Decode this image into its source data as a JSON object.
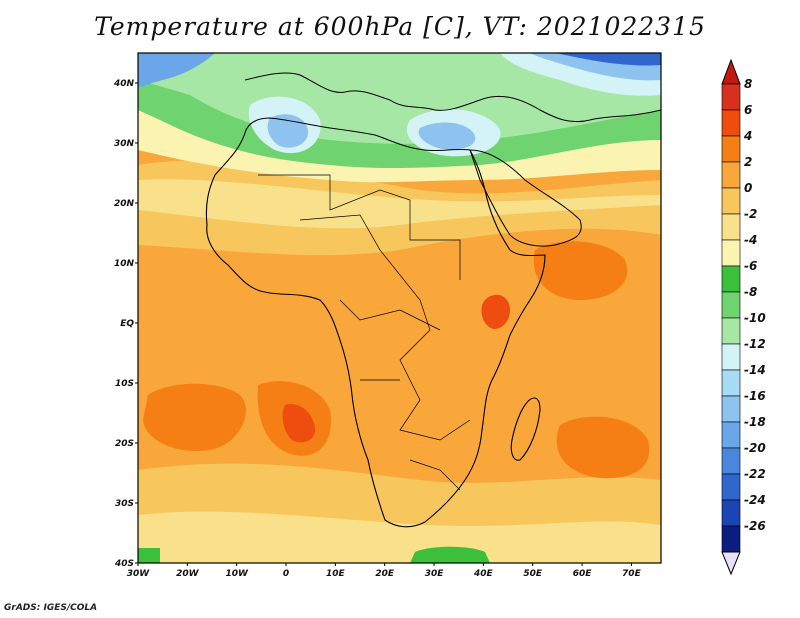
{
  "title": "Temperature at 600hPa [C], VT: 2021022315",
  "credit": "GrADS: IGES/COLA",
  "map": {
    "lat_labels": [
      "40N",
      "30N",
      "20N",
      "10N",
      "EQ",
      "10S",
      "20S",
      "30S",
      "40S"
    ],
    "lon_labels": [
      "30W",
      "20W",
      "10W",
      "0",
      "10E",
      "20E",
      "30E",
      "40E",
      "50E",
      "60E",
      "70E"
    ],
    "lat_range": [
      -40,
      45
    ],
    "lon_range": [
      -30,
      76
    ]
  },
  "colorbar": {
    "labels": [
      "8",
      "6",
      "4",
      "2",
      "0",
      "-2",
      "-4",
      "-6",
      "-8",
      "-10",
      "-12",
      "-14",
      "-16",
      "-18",
      "-20",
      "-22",
      "-24",
      "-26"
    ],
    "colors": [
      "#d7301f",
      "#ef4c10",
      "#f57f14",
      "#f9a73a",
      "#f7c65c",
      "#f9e08a",
      "#fbf3b0",
      "#3cc03c",
      "#6fd36f",
      "#a6e7a6",
      "#d3f3f6",
      "#a8dcf5",
      "#8ec3f0",
      "#6aa6e8",
      "#4a86dc",
      "#2f67cf",
      "#1b45b5",
      "#0b1e80"
    ],
    "top_tip_color": "#c21a0c",
    "bottom_tip_color": "#e8e0f8"
  }
}
